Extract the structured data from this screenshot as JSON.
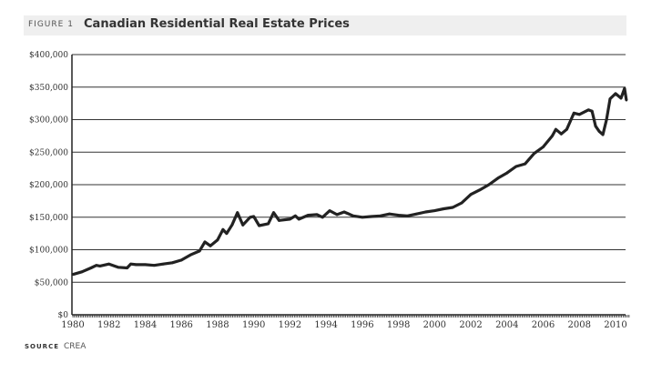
{
  "header": {
    "figure_label": "FIGURE 1",
    "title": "Canadian Residential Real Estate Prices"
  },
  "source": {
    "label": "SOURCE",
    "value": "CREA"
  },
  "chart_data": {
    "type": "line",
    "title": "Canadian Residential Real Estate Prices",
    "xlabel": "",
    "ylabel": "",
    "xlim": [
      1980,
      2010.6
    ],
    "ylim": [
      0,
      400000
    ],
    "grid": true,
    "line_color": "#222222",
    "x_ticks": [
      "1980",
      "1982",
      "1984",
      "1986",
      "1988",
      "1990",
      "1992",
      "1994",
      "1996",
      "1998",
      "2000",
      "2002",
      "2004",
      "2006",
      "2008",
      "2010"
    ],
    "y_ticks": [
      "$0",
      "$50,000",
      "$100,000",
      "$150,000",
      "$200,000",
      "$250,000",
      "$300,000",
      "$350,000",
      "$400,000"
    ],
    "series": [
      {
        "x": [
          1980.0,
          1980.5,
          1981.0,
          1981.3,
          1981.5,
          1982.0,
          1982.5,
          1983.0,
          1983.2,
          1983.5,
          1984.0,
          1984.5,
          1985.0,
          1985.5,
          1986.0,
          1986.5,
          1987.0,
          1987.3,
          1987.6,
          1988.0,
          1988.3,
          1988.5,
          1988.8,
          1989.1,
          1989.4,
          1989.8,
          1990.0,
          1990.3,
          1990.8,
          1991.1,
          1991.4,
          1992.0,
          1992.3,
          1992.5,
          1993.0,
          1993.5,
          1993.8,
          1994.2,
          1994.6,
          1995.0,
          1995.5,
          1996.0,
          1996.5,
          1997.0,
          1997.5,
          1998.0,
          1998.5,
          1999.0,
          1999.5,
          2000.0,
          2000.5,
          2001.0,
          2001.5,
          2002.0,
          2002.5,
          2003.0,
          2003.5,
          2004.0,
          2004.5,
          2005.0,
          2005.5,
          2006.0,
          2006.5,
          2006.7,
          2007.0,
          2007.3,
          2007.7,
          2008.0,
          2008.5,
          2008.7,
          2008.9,
          2009.1,
          2009.3,
          2009.5,
          2009.7,
          2010.0,
          2010.3,
          2010.5,
          2010.6
        ],
        "y": [
          62000,
          66000,
          72000,
          76000,
          75000,
          78000,
          73000,
          72000,
          78000,
          77000,
          77000,
          76000,
          78000,
          80000,
          84000,
          92000,
          98000,
          112000,
          106000,
          115000,
          131000,
          125000,
          138000,
          157000,
          138000,
          150000,
          151000,
          137000,
          140000,
          157000,
          145000,
          147000,
          152000,
          147000,
          153000,
          154000,
          150000,
          160000,
          154000,
          158000,
          152000,
          150000,
          151000,
          152000,
          155000,
          153000,
          152000,
          155000,
          158000,
          160000,
          163000,
          165000,
          172000,
          185000,
          192000,
          200000,
          210000,
          218000,
          228000,
          232000,
          248000,
          258000,
          275000,
          285000,
          278000,
          285000,
          310000,
          308000,
          315000,
          313000,
          290000,
          282000,
          277000,
          300000,
          332000,
          340000,
          333000,
          348000,
          330000
        ]
      }
    ]
  }
}
